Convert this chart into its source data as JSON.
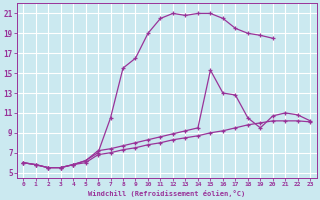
{
  "xlabel": "Windchill (Refroidissement éolien,°C)",
  "bg_color": "#cbe9f0",
  "grid_color": "#ffffff",
  "line_color": "#993399",
  "xlim": [
    -0.5,
    23.5
  ],
  "ylim": [
    4.5,
    22.0
  ],
  "xticks": [
    0,
    1,
    2,
    3,
    4,
    5,
    6,
    7,
    8,
    9,
    10,
    11,
    12,
    13,
    14,
    15,
    16,
    17,
    18,
    19,
    20,
    21,
    22,
    23
  ],
  "yticks": [
    5,
    7,
    9,
    11,
    13,
    15,
    17,
    19,
    21
  ],
  "curve1_x": [
    0,
    1,
    2,
    3,
    4,
    5,
    6,
    7,
    8,
    9,
    10,
    11,
    12,
    13,
    14,
    15,
    16,
    17,
    18,
    19,
    20
  ],
  "curve1_y": [
    6.0,
    5.8,
    5.5,
    5.5,
    5.8,
    6.2,
    7.0,
    10.5,
    15.5,
    16.5,
    19.0,
    20.5,
    21.0,
    20.8,
    21.0,
    21.0,
    20.5,
    19.5,
    19.0,
    18.8,
    18.5
  ],
  "curve2_x": [
    0,
    1,
    2,
    3,
    4,
    5,
    6,
    7,
    8,
    9,
    10,
    11,
    12,
    13,
    14,
    15,
    16,
    17,
    18,
    19,
    20,
    21,
    22,
    23
  ],
  "curve2_y": [
    6.0,
    5.8,
    5.5,
    5.5,
    5.8,
    6.2,
    7.2,
    7.4,
    7.7,
    8.0,
    8.3,
    8.6,
    8.9,
    9.2,
    9.5,
    15.3,
    13.0,
    12.8,
    10.5,
    9.5,
    10.7,
    11.0,
    10.8,
    10.2
  ],
  "curve3_x": [
    0,
    1,
    2,
    3,
    4,
    5,
    6,
    7,
    8,
    9,
    10,
    11,
    12,
    13,
    14,
    15,
    16,
    17,
    18,
    19,
    20,
    21,
    22,
    23
  ],
  "curve3_y": [
    6.0,
    5.8,
    5.5,
    5.5,
    5.8,
    6.0,
    6.8,
    7.0,
    7.3,
    7.5,
    7.8,
    8.0,
    8.3,
    8.5,
    8.7,
    9.0,
    9.2,
    9.5,
    9.8,
    10.0,
    10.2,
    10.2,
    10.2,
    10.1
  ]
}
